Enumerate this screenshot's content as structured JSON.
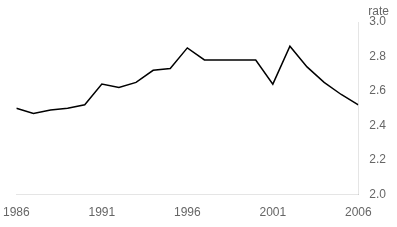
{
  "chart_data": {
    "type": "line",
    "x": [
      1986,
      1987,
      1988,
      1989,
      1990,
      1991,
      1992,
      1993,
      1994,
      1995,
      1996,
      1997,
      1998,
      1999,
      2000,
      2001,
      2002,
      2003,
      2004,
      2005,
      2006
    ],
    "values": [
      2.5,
      2.47,
      2.49,
      2.5,
      2.52,
      2.64,
      2.62,
      2.65,
      2.72,
      2.73,
      2.85,
      2.78,
      2.78,
      2.78,
      2.78,
      2.64,
      2.86,
      2.74,
      2.65,
      2.58,
      2.52
    ],
    "color": "#000000",
    "xlim": [
      1986,
      2006
    ],
    "xticks": [
      1986,
      1991,
      1996,
      2001,
      2006
    ],
    "ylim": [
      2.0,
      3.0
    ],
    "yticks": [
      {
        "value": 2.0,
        "label": "2.0"
      },
      2.2,
      2.4,
      2.6,
      2.8,
      {
        "value": 3.0,
        "label": "3.0"
      }
    ],
    "ylabel": "rate",
    "grid": false
  }
}
